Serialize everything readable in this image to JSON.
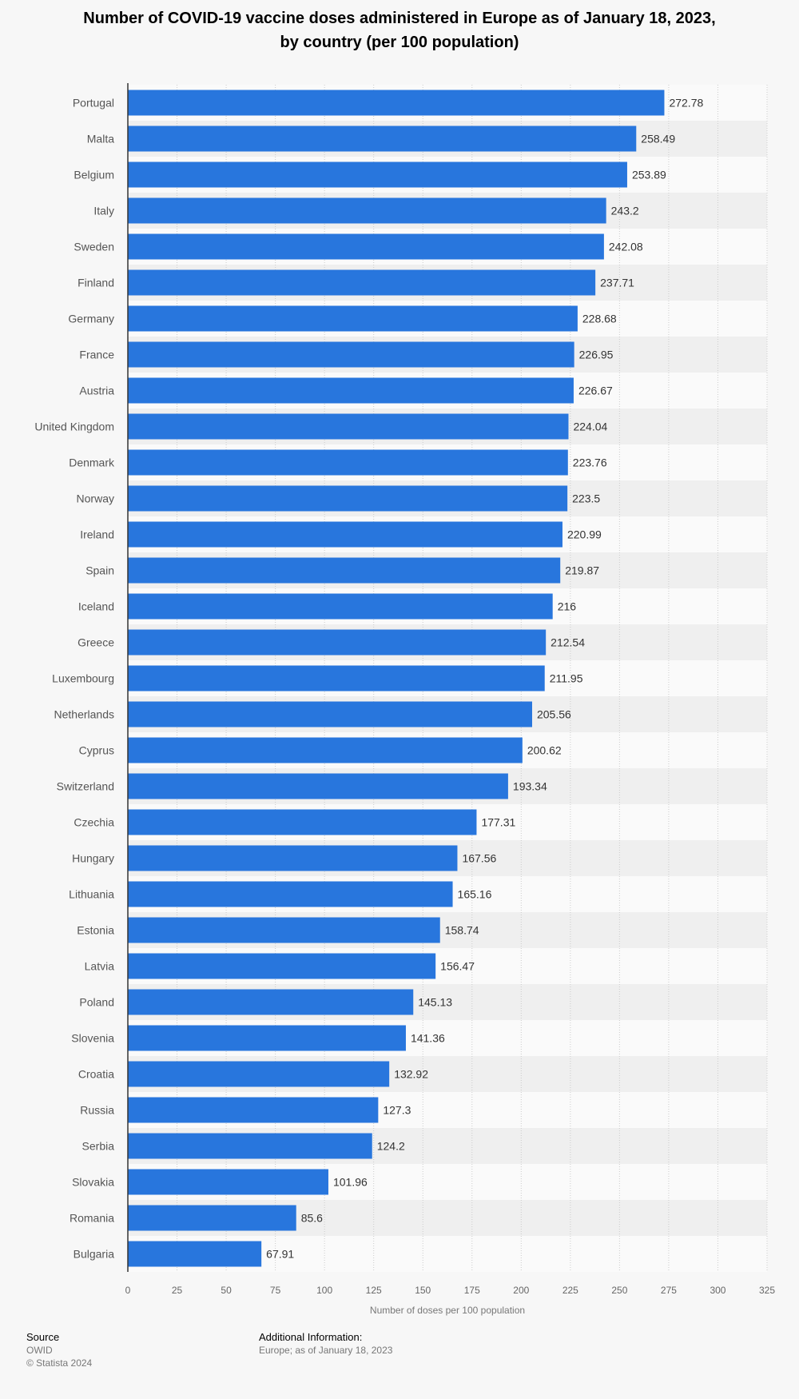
{
  "title": {
    "line1": "Number of COVID-19 vaccine doses administered in Europe as of January 18, 2023,",
    "line2": "by country (per 100 population)"
  },
  "chart_data": {
    "type": "bar",
    "orientation": "horizontal",
    "categories": [
      "Portugal",
      "Malta",
      "Belgium",
      "Italy",
      "Sweden",
      "Finland",
      "Germany",
      "France",
      "Austria",
      "United Kingdom",
      "Denmark",
      "Norway",
      "Ireland",
      "Spain",
      "Iceland",
      "Greece",
      "Luxembourg",
      "Netherlands",
      "Cyprus",
      "Switzerland",
      "Czechia",
      "Hungary",
      "Lithuania",
      "Estonia",
      "Latvia",
      "Poland",
      "Slovenia",
      "Croatia",
      "Russia",
      "Serbia",
      "Slovakia",
      "Romania",
      "Bulgaria"
    ],
    "values": [
      272.78,
      258.49,
      253.89,
      243.2,
      242.08,
      237.71,
      228.68,
      226.95,
      226.67,
      224.04,
      223.76,
      223.5,
      220.99,
      219.87,
      216,
      212.54,
      211.95,
      205.56,
      200.62,
      193.34,
      177.31,
      167.56,
      165.16,
      158.74,
      156.47,
      145.13,
      141.36,
      132.92,
      127.3,
      124.2,
      101.96,
      85.6,
      67.91
    ],
    "value_labels": [
      "272.78",
      "258.49",
      "253.89",
      "243.2",
      "242.08",
      "237.71",
      "228.68",
      "226.95",
      "226.67",
      "224.04",
      "223.76",
      "223.5",
      "220.99",
      "219.87",
      "216",
      "212.54",
      "211.95",
      "205.56",
      "200.62",
      "193.34",
      "177.31",
      "167.56",
      "165.16",
      "158.74",
      "156.47",
      "145.13",
      "141.36",
      "132.92",
      "127.3",
      "124.2",
      "101.96",
      "85.6",
      "67.91"
    ],
    "xlabel": "Number of doses per 100 population",
    "xlim": [
      0,
      325
    ],
    "xticks": [
      "0",
      "25",
      "50",
      "75",
      "100",
      "125",
      "150",
      "175",
      "200",
      "225",
      "250",
      "275",
      "300",
      "325"
    ],
    "grid": true,
    "bar_color": "#2876dd",
    "stripe_color": "#efefef"
  },
  "footer": {
    "source_heading": "Source",
    "source_name": "OWID",
    "copyright": "© Statista 2024",
    "info_heading": "Additional Information:",
    "info_text": "Europe; as of January 18, 2023"
  }
}
